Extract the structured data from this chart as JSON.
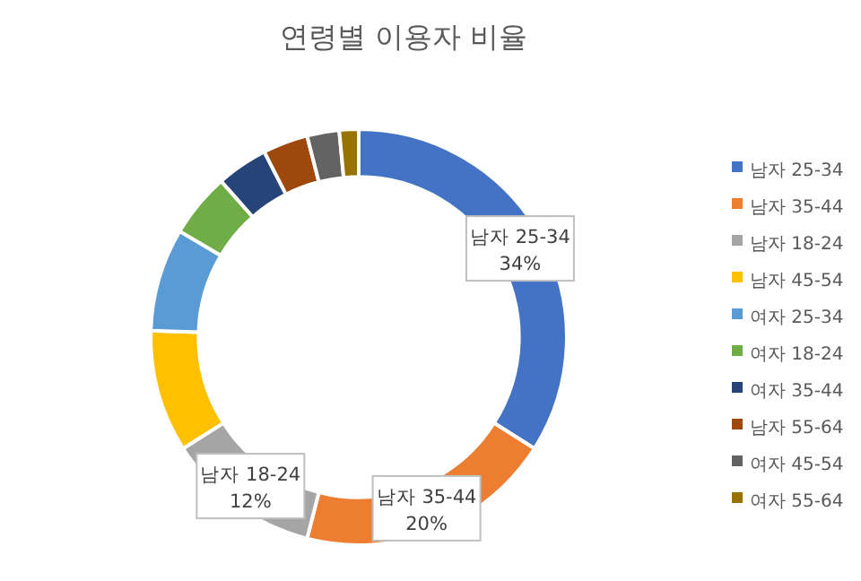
{
  "chart_data": {
    "type": "donut",
    "title": "연령별 이용자 비율",
    "categories": [
      "남자 25-34",
      "남자 35-44",
      "남자 18-24",
      "남자 45-54",
      "여자 25-34",
      "여자 18-24",
      "여자 35-44",
      "남자 55-64",
      "여자 45-54",
      "여자 55-64"
    ],
    "values": [
      34,
      20,
      12,
      9.5,
      8,
      5,
      4,
      3.5,
      2.5,
      1.5
    ],
    "colors": [
      "#4472c4",
      "#ed7d31",
      "#a5a5a5",
      "#ffc000",
      "#5b9bd5",
      "#70ad47",
      "#264478",
      "#9e480e",
      "#636363",
      "#997300"
    ],
    "value_labels": [
      "34%",
      "20%",
      "12%",
      null,
      null,
      null,
      null,
      null,
      null,
      null
    ],
    "legend": "right"
  }
}
